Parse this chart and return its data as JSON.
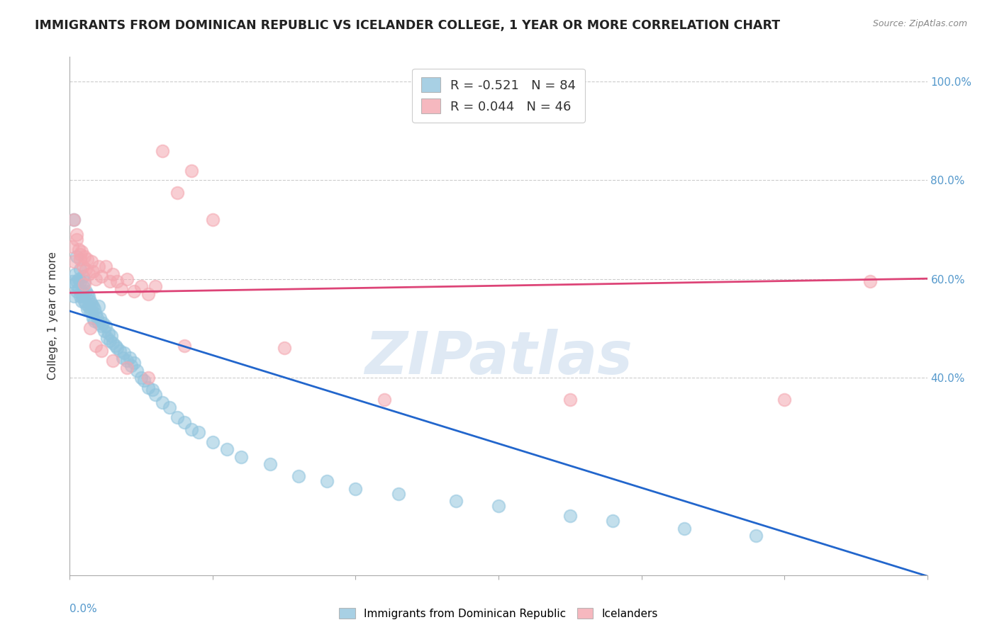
{
  "title": "IMMIGRANTS FROM DOMINICAN REPUBLIC VS ICELANDER COLLEGE, 1 YEAR OR MORE CORRELATION CHART",
  "source": "Source: ZipAtlas.com",
  "ylabel": "College, 1 year or more",
  "xlim": [
    0.0,
    0.6
  ],
  "ylim": [
    0.0,
    1.05
  ],
  "watermark": "ZIPatlas",
  "legend1_label": "R = -0.521   N = 84",
  "legend2_label": "R = 0.044   N = 46",
  "blue_color": "#92c5de",
  "pink_color": "#f4a7b0",
  "line_blue": "#2266cc",
  "line_pink": "#dd4477",
  "blue_intercept": 0.535,
  "blue_slope": -0.895,
  "pink_intercept": 0.572,
  "pink_slope": 0.048,
  "blue_points_x": [
    0.002,
    0.003,
    0.004,
    0.004,
    0.005,
    0.005,
    0.006,
    0.006,
    0.007,
    0.007,
    0.008,
    0.008,
    0.008,
    0.009,
    0.009,
    0.01,
    0.01,
    0.011,
    0.011,
    0.012,
    0.012,
    0.013,
    0.013,
    0.014,
    0.014,
    0.015,
    0.015,
    0.016,
    0.016,
    0.017,
    0.017,
    0.018,
    0.019,
    0.02,
    0.02,
    0.021,
    0.022,
    0.023,
    0.024,
    0.025,
    0.026,
    0.027,
    0.028,
    0.029,
    0.03,
    0.032,
    0.033,
    0.035,
    0.037,
    0.038,
    0.04,
    0.042,
    0.043,
    0.045,
    0.047,
    0.05,
    0.052,
    0.055,
    0.058,
    0.06,
    0.065,
    0.07,
    0.075,
    0.08,
    0.085,
    0.09,
    0.1,
    0.11,
    0.12,
    0.14,
    0.16,
    0.18,
    0.2,
    0.23,
    0.27,
    0.3,
    0.35,
    0.38,
    0.43,
    0.48,
    0.003,
    0.005,
    0.007,
    0.009
  ],
  "blue_points_y": [
    0.595,
    0.565,
    0.59,
    0.61,
    0.595,
    0.575,
    0.6,
    0.58,
    0.565,
    0.595,
    0.57,
    0.575,
    0.555,
    0.585,
    0.565,
    0.595,
    0.555,
    0.575,
    0.55,
    0.57,
    0.54,
    0.565,
    0.545,
    0.555,
    0.535,
    0.55,
    0.535,
    0.545,
    0.52,
    0.54,
    0.515,
    0.53,
    0.52,
    0.545,
    0.51,
    0.52,
    0.505,
    0.51,
    0.495,
    0.505,
    0.48,
    0.49,
    0.475,
    0.485,
    0.47,
    0.465,
    0.46,
    0.455,
    0.44,
    0.45,
    0.435,
    0.44,
    0.425,
    0.43,
    0.415,
    0.4,
    0.395,
    0.38,
    0.375,
    0.365,
    0.35,
    0.34,
    0.32,
    0.31,
    0.295,
    0.29,
    0.27,
    0.255,
    0.24,
    0.225,
    0.2,
    0.19,
    0.175,
    0.165,
    0.15,
    0.14,
    0.12,
    0.11,
    0.095,
    0.08,
    0.72,
    0.645,
    0.62,
    0.605
  ],
  "pink_points_x": [
    0.002,
    0.003,
    0.005,
    0.006,
    0.007,
    0.008,
    0.009,
    0.01,
    0.011,
    0.012,
    0.013,
    0.015,
    0.016,
    0.018,
    0.02,
    0.022,
    0.025,
    0.028,
    0.03,
    0.033,
    0.036,
    0.04,
    0.045,
    0.05,
    0.055,
    0.06,
    0.065,
    0.075,
    0.085,
    0.1,
    0.003,
    0.005,
    0.007,
    0.01,
    0.014,
    0.018,
    0.022,
    0.03,
    0.04,
    0.055,
    0.08,
    0.15,
    0.22,
    0.35,
    0.5,
    0.56
  ],
  "pink_points_y": [
    0.665,
    0.635,
    0.68,
    0.66,
    0.64,
    0.655,
    0.625,
    0.645,
    0.62,
    0.64,
    0.61,
    0.635,
    0.615,
    0.6,
    0.625,
    0.605,
    0.625,
    0.595,
    0.61,
    0.595,
    0.58,
    0.6,
    0.575,
    0.585,
    0.57,
    0.585,
    0.86,
    0.775,
    0.82,
    0.72,
    0.72,
    0.69,
    0.65,
    0.59,
    0.5,
    0.465,
    0.455,
    0.435,
    0.42,
    0.4,
    0.465,
    0.46,
    0.355,
    0.355,
    0.355,
    0.595
  ],
  "grid_color": "#cccccc",
  "tick_color": "#5599cc",
  "background_color": "#ffffff",
  "title_fontsize": 12.5,
  "axis_fontsize": 11,
  "legend_fontsize": 13
}
